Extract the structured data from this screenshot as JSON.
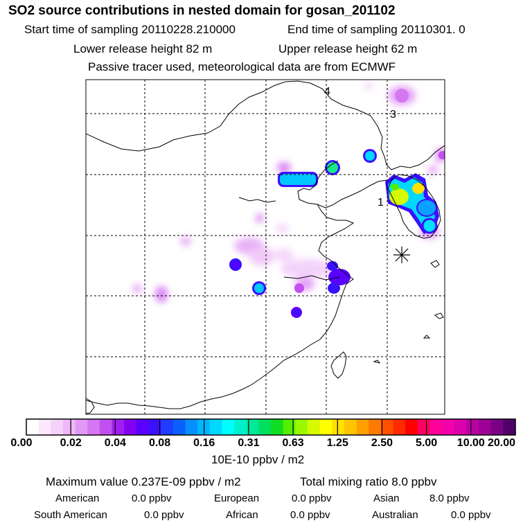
{
  "header": {
    "title": "SO2 source contributions in nested domain for gosan_201102",
    "start_time": "Start time of sampling 20110228.210000",
    "end_time": "End time of sampling 20110301.     0",
    "lower_height": "Lower release height   82 m",
    "upper_height": "Upper release height   62 m",
    "tracer_note": "Passive tracer used, meteorological data are from ECMWF"
  },
  "chart_data": {
    "type": "heatmap",
    "title": "SO2 source contributions in nested domain for gosan_201102",
    "map_labels": [
      "1",
      "3",
      "4"
    ],
    "colorbar": {
      "ticks": [
        "0.00",
        "0.02",
        "0.04",
        "0.08",
        "0.16",
        "0.31",
        "0.63",
        "1.25",
        "2.50",
        "5.00",
        "10.00",
        "20.00"
      ],
      "unit": "10E-10 ppbv / m2",
      "colors": [
        "#ffffff",
        "#fbe8fd",
        "#f6d2fb",
        "#f0b8f8",
        "#e299f5",
        "#d577f2",
        "#c24ff0",
        "#a21ef0",
        "#8300f2",
        "#5a00ff",
        "#3c10ff",
        "#1f3cff",
        "#0a60ff",
        "#0690ff",
        "#00b6ff",
        "#00d8ff",
        "#00ffff",
        "#00f0cc",
        "#00e89a",
        "#00e060",
        "#10dd22",
        "#54ee00",
        "#9cf800",
        "#d6fa00",
        "#ffff00",
        "#ffe000",
        "#ffc400",
        "#ffa000",
        "#ff7a00",
        "#ff5000",
        "#ff2a00",
        "#ff0000",
        "#ff0060",
        "#ff0099",
        "#f200aa",
        "#da00ab",
        "#bb00a2",
        "#9c0096",
        "#7a0086",
        "#50006a"
      ]
    },
    "hotspots": [
      {
        "lon": 126.8,
        "lat": 37.5,
        "level": "0.63-2.50"
      },
      {
        "lon": 127.7,
        "lat": 36.2,
        "level": "0.16-0.31"
      },
      {
        "lon": 128.6,
        "lat": 35.1,
        "level": "0.08-0.16"
      },
      {
        "lon": 129.5,
        "lat": 37.6,
        "level": "1.25-5.00"
      },
      {
        "lon": 117.5,
        "lat": 39.2,
        "level": "0.08-0.16"
      },
      {
        "lon": 121.5,
        "lat": 39.0,
        "level": "0.16-0.31"
      },
      {
        "lon": 125.5,
        "lat": 41.5,
        "level": "0.04-0.08"
      },
      {
        "lon": 113.0,
        "lat": 31.8,
        "level": "0.04-0.08"
      },
      {
        "lon": 118.7,
        "lat": 32.2,
        "level": "0.04-0.08"
      },
      {
        "lon": 120.7,
        "lat": 31.0,
        "level": "0.04-0.08"
      },
      {
        "lon": 117.0,
        "lat": 28.9,
        "level": "0.02-0.04"
      }
    ]
  },
  "footer": {
    "maximum": "Maximum value  0.237E-09 ppbv / m2",
    "total_mixing": "Total mixing ratio       8.0 ppbv",
    "regions": [
      {
        "name": "American",
        "value": "0.0 ppbv"
      },
      {
        "name": "European",
        "value": "0.0 ppbv"
      },
      {
        "name": "Asian",
        "value": "8.0 ppbv"
      },
      {
        "name": "South American",
        "value": "0.0 ppbv"
      },
      {
        "name": "African",
        "value": "0.0 ppbv"
      },
      {
        "name": "Australian",
        "value": "0.0 ppbv"
      }
    ]
  }
}
